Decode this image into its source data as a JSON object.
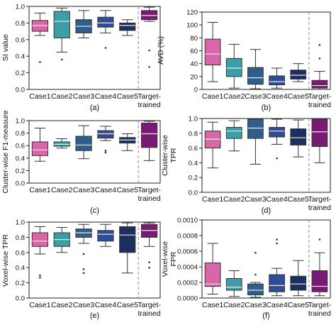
{
  "figure": {
    "categories": [
      "Case1",
      "Case2",
      "Case3",
      "Case4",
      "Case5",
      "Target-\ntrained"
    ],
    "colors": [
      "#d966a8",
      "#3a9fa8",
      "#2e5f8c",
      "#2f4d96",
      "#1c2f5e",
      "#7a1b73"
    ]
  },
  "chart_data": [
    {
      "type": "box",
      "panel": "(a)",
      "ylabel": "SI value",
      "ylim": [
        0.0,
        1.0
      ],
      "yticks": [
        0.0,
        0.2,
        0.4,
        0.6,
        0.8,
        1.0
      ],
      "tick_labels": [
        "0.0",
        "0.2",
        "0.4",
        "0.6",
        "0.8",
        "1.0"
      ],
      "categories": [
        "Case1",
        "Case2",
        "Case3",
        "Case4",
        "Case5",
        "Target-\ntrained"
      ],
      "boxes": [
        {
          "whislo": 0.65,
          "q1": 0.7,
          "med": 0.77,
          "q3": 0.83,
          "whishi": 0.92,
          "fliers": [
            0.33
          ]
        },
        {
          "whislo": 0.45,
          "q1": 0.62,
          "med": 0.82,
          "q3": 0.94,
          "whishi": 0.98,
          "fliers": [
            0.36
          ]
        },
        {
          "whislo": 0.62,
          "q1": 0.68,
          "med": 0.76,
          "q3": 0.84,
          "whishi": 0.95,
          "fliers": []
        },
        {
          "whislo": 0.68,
          "q1": 0.75,
          "med": 0.8,
          "q3": 0.87,
          "whishi": 0.95,
          "fliers": [
            0.5
          ]
        },
        {
          "whislo": 0.65,
          "q1": 0.71,
          "med": 0.77,
          "q3": 0.8,
          "whishi": 0.84,
          "fliers": []
        },
        {
          "whislo": 0.82,
          "q1": 0.84,
          "med": 0.89,
          "q3": 0.95,
          "whishi": 0.99,
          "fliers": [
            0.47,
            0.27
          ]
        }
      ]
    },
    {
      "type": "box",
      "panel": "(b)",
      "ylabel": "AVD (%)",
      "ylim": [
        0,
        120
      ],
      "yticks": [
        0,
        20,
        40,
        60,
        80,
        100,
        120
      ],
      "tick_labels": [
        "0",
        "20",
        "40",
        "60",
        "80",
        "100",
        "120"
      ],
      "categories": [
        "Case1",
        "Case2",
        "Case3",
        "Case4",
        "Case5",
        "Target-\ntrained"
      ],
      "boxes": [
        {
          "whislo": 12,
          "q1": 38,
          "med": 55,
          "q3": 78,
          "whishi": 104,
          "fliers": []
        },
        {
          "whislo": 2,
          "q1": 20,
          "med": 33,
          "q3": 48,
          "whishi": 70,
          "fliers": []
        },
        {
          "whislo": 1,
          "q1": 8,
          "med": 18,
          "q3": 34,
          "whishi": 62,
          "fliers": []
        },
        {
          "whislo": 2,
          "q1": 7,
          "med": 12,
          "q3": 21,
          "whishi": 33,
          "fliers": []
        },
        {
          "whislo": 12,
          "q1": 16,
          "med": 22,
          "q3": 30,
          "whishi": 40,
          "fliers": []
        },
        {
          "whislo": 0,
          "q1": 2,
          "med": 6,
          "q3": 14,
          "whishi": 28,
          "fliers": [
            69,
            48
          ]
        }
      ]
    },
    {
      "type": "box",
      "panel": "(c)",
      "ylabel": "Cluster-wise F1-measure",
      "ylim": [
        0.0,
        1.0
      ],
      "yticks": [
        0.0,
        0.2,
        0.4,
        0.6,
        0.8,
        1.0
      ],
      "tick_labels": [
        "0.0",
        "0.2",
        "0.4",
        "0.6",
        "0.8",
        "1.0"
      ],
      "categories": [
        "Case1",
        "Case2",
        "Case3",
        "Case4",
        "Case5",
        "Target-\ntrained"
      ],
      "boxes": [
        {
          "whislo": 0.35,
          "q1": 0.44,
          "med": 0.53,
          "q3": 0.66,
          "whishi": 0.88,
          "fliers": []
        },
        {
          "whislo": 0.56,
          "q1": 0.59,
          "med": 0.62,
          "q3": 0.66,
          "whishi": 0.71,
          "fliers": []
        },
        {
          "whislo": 0.39,
          "q1": 0.52,
          "med": 0.61,
          "q3": 0.75,
          "whishi": 0.92,
          "fliers": []
        },
        {
          "whislo": 0.68,
          "q1": 0.72,
          "med": 0.79,
          "q3": 0.84,
          "whishi": 0.91,
          "fliers": [
            0.52,
            0.49
          ]
        },
        {
          "whislo": 0.52,
          "q1": 0.64,
          "med": 0.69,
          "q3": 0.73,
          "whishi": 0.79,
          "fliers": []
        },
        {
          "whislo": 0.36,
          "q1": 0.57,
          "med": 0.79,
          "q3": 0.96,
          "whishi": 0.99,
          "fliers": []
        }
      ]
    },
    {
      "type": "box",
      "panel": "(d)",
      "ylabel": "Cluster-wise\nTPR",
      "ylim": [
        0.0,
        1.0
      ],
      "yticks": [
        0.0,
        0.2,
        0.4,
        0.6,
        0.8,
        1.0
      ],
      "tick_labels": [
        "0.0",
        "0.2",
        "0.4",
        "0.6",
        "0.8",
        "1.0"
      ],
      "categories": [
        "Case1",
        "Case2",
        "Case3",
        "Case4",
        "Case5",
        "Target-\ntrained"
      ],
      "boxes": [
        {
          "whislo": 0.33,
          "q1": 0.6,
          "med": 0.72,
          "q3": 0.83,
          "whishi": 0.95,
          "fliers": []
        },
        {
          "whislo": 0.56,
          "q1": 0.73,
          "med": 0.83,
          "q3": 0.88,
          "whishi": 0.97,
          "fliers": []
        },
        {
          "whislo": 0.38,
          "q1": 0.73,
          "med": 0.87,
          "q3": 0.99,
          "whishi": 1.0,
          "fliers": []
        },
        {
          "whislo": 0.65,
          "q1": 0.75,
          "med": 0.83,
          "q3": 0.88,
          "whishi": 0.99,
          "fliers": [
            0.46
          ]
        },
        {
          "whislo": 0.48,
          "q1": 0.64,
          "med": 0.74,
          "q3": 0.86,
          "whishi": 0.98,
          "fliers": []
        },
        {
          "whislo": 0.4,
          "q1": 0.62,
          "med": 0.82,
          "q3": 0.99,
          "whishi": 1.0,
          "fliers": []
        }
      ]
    },
    {
      "type": "box",
      "panel": "(e)",
      "ylabel": "Voxel-wise TPR",
      "ylim": [
        0.0,
        1.0
      ],
      "yticks": [
        0.0,
        0.2,
        0.4,
        0.6,
        0.8,
        1.0
      ],
      "tick_labels": [
        "0.0",
        "0.2",
        "0.4",
        "0.6",
        "0.8",
        "1.0"
      ],
      "categories": [
        "Case1",
        "Case2",
        "Case3",
        "Case4",
        "Case5",
        "Target-\ntrained"
      ],
      "boxes": [
        {
          "whislo": 0.58,
          "q1": 0.68,
          "med": 0.75,
          "q3": 0.86,
          "whishi": 0.94,
          "fliers": [
            0.3,
            0.27
          ]
        },
        {
          "whislo": 0.6,
          "q1": 0.68,
          "med": 0.77,
          "q3": 0.86,
          "whishi": 0.93,
          "fliers": []
        },
        {
          "whislo": 0.72,
          "q1": 0.8,
          "med": 0.86,
          "q3": 0.91,
          "whishi": 0.97,
          "fliers": [
            0.58,
            0.38,
            0.33
          ]
        },
        {
          "whislo": 0.68,
          "q1": 0.75,
          "med": 0.84,
          "q3": 0.89,
          "whishi": 0.97,
          "fliers": []
        },
        {
          "whislo": 0.33,
          "q1": 0.6,
          "med": 0.83,
          "q3": 0.94,
          "whishi": 0.99,
          "fliers": []
        },
        {
          "whislo": 0.68,
          "q1": 0.8,
          "med": 0.89,
          "q3": 0.97,
          "whishi": 0.99,
          "fliers": [
            0.47,
            0.4
          ]
        }
      ]
    },
    {
      "type": "box",
      "panel": "(f)",
      "ylabel": "Voxel-wise\nFPR",
      "ylim": [
        0.0,
        0.001
      ],
      "yticks": [
        0.0,
        0.0002,
        0.0004,
        0.0006,
        0.0008,
        0.001
      ],
      "tick_labels": [
        "0.0000",
        "0.0002",
        "0.0004",
        "0.0006",
        "0.0008",
        "0.0010"
      ],
      "categories": [
        "Case1",
        "Case2",
        "Case3",
        "Case4",
        "Case5",
        "Target-\ntrained"
      ],
      "boxes": [
        {
          "whislo": 5e-05,
          "q1": 0.00015,
          "med": 0.00018,
          "q3": 0.00045,
          "whishi": 0.0007,
          "fliers": []
        },
        {
          "whislo": 2e-05,
          "q1": 0.0001,
          "med": 0.00014,
          "q3": 0.00025,
          "whishi": 0.00035,
          "fliers": []
        },
        {
          "whislo": 1e-05,
          "q1": 4e-05,
          "med": 0.0001,
          "q3": 0.00018,
          "whishi": 0.0002,
          "fliers": [
            0.00058,
            0.0003
          ]
        },
        {
          "whislo": 3e-05,
          "q1": 8e-05,
          "med": 0.00016,
          "q3": 0.0003,
          "whishi": 0.00038,
          "fliers": [
            0.00075,
            0.0007
          ]
        },
        {
          "whislo": 3e-05,
          "q1": 0.0001,
          "med": 0.00018,
          "q3": 0.00028,
          "whishi": 0.00048,
          "fliers": []
        },
        {
          "whislo": 3e-05,
          "q1": 8e-05,
          "med": 0.00015,
          "q3": 0.00035,
          "whishi": 0.00058,
          "fliers": [
            0.00075
          ]
        }
      ]
    }
  ]
}
